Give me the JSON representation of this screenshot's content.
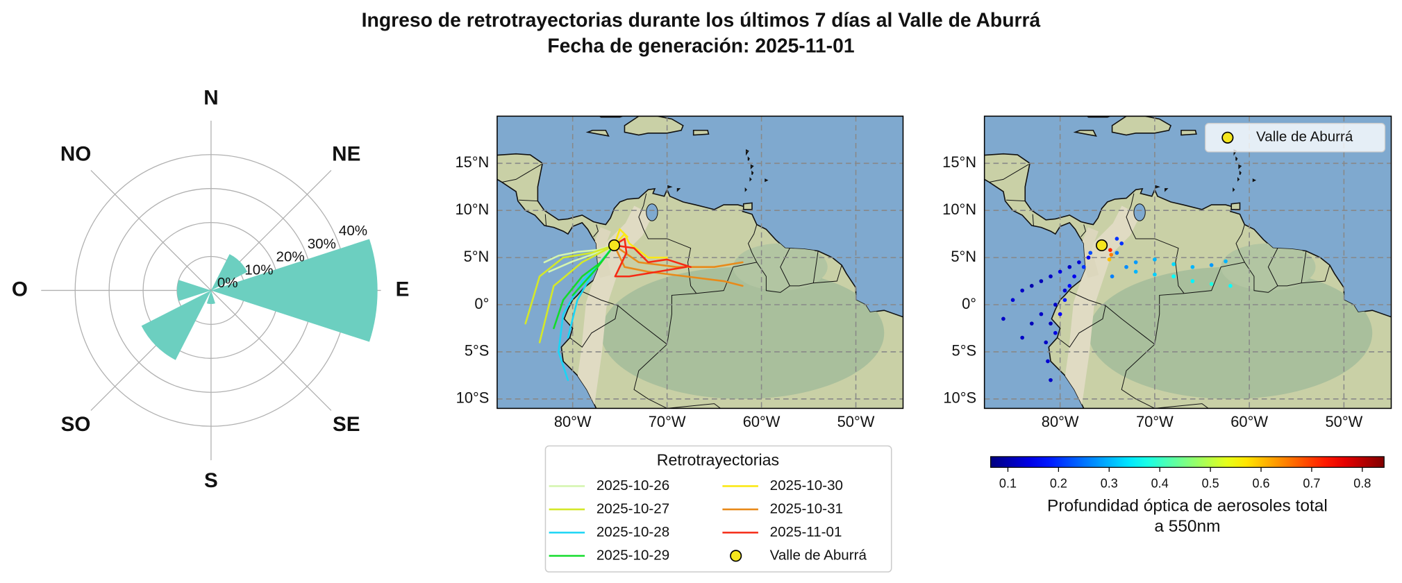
{
  "title": [
    "Ingreso de retrotrayectorias durante los últimos 7 días al Valle de Aburrá",
    "Fecha de generación: 2025-11-01"
  ],
  "chart_data": [
    {
      "type": "polar_bar",
      "categories": [
        "N",
        "NE",
        "E",
        "SE",
        "S",
        "SO",
        "O",
        "NO"
      ],
      "values": [
        0,
        12,
        49,
        0,
        4,
        23,
        10,
        0
      ],
      "color": "#6ccfc0",
      "rlim": [
        0,
        50
      ],
      "rticks": [
        {
          "value": 0,
          "label": "0%"
        },
        {
          "value": 10,
          "label": "10%"
        },
        {
          "value": 20,
          "label": "20%"
        },
        {
          "value": 30,
          "label": "30%"
        },
        {
          "value": 40,
          "label": "40%"
        }
      ],
      "grid": true
    },
    {
      "type": "line",
      "xlim": [
        -88,
        -45
      ],
      "ylim": [
        -11,
        20
      ],
      "xticks": [
        {
          "value": -80,
          "label": "80°W"
        },
        {
          "value": -70,
          "label": "70°W"
        },
        {
          "value": -60,
          "label": "60°W"
        },
        {
          "value": -50,
          "label": "50°W"
        }
      ],
      "yticks": [
        {
          "value": -10,
          "label": "10°S"
        },
        {
          "value": -5,
          "label": "5°S"
        },
        {
          "value": 0,
          "label": "0°"
        },
        {
          "value": 5,
          "label": "5°N"
        },
        {
          "value": 10,
          "label": "10°N"
        },
        {
          "value": 15,
          "label": "15°N"
        }
      ],
      "grid": true,
      "legend": "below",
      "legend_title": "Retrotrayectorias",
      "series": [
        {
          "name": "2025-10-26",
          "color": "#d5f5b0",
          "x": [
            -75.6,
            -77.5,
            -79.5,
            -81.5,
            -83,
            null,
            -75.6,
            -78,
            -80,
            -82.5
          ],
          "values": [
            6.3,
            5.8,
            5.6,
            5.2,
            4.5,
            null,
            6.3,
            5.3,
            4.6,
            3.5
          ]
        },
        {
          "name": "2025-10-27",
          "color": "#d4e82a",
          "x": [
            -75.6,
            -78,
            -81,
            -83.5,
            -85,
            null,
            -75.6,
            -79,
            -82,
            -83.5
          ],
          "values": [
            6.3,
            5.5,
            5,
            3,
            -2,
            null,
            6.3,
            4.5,
            2,
            -4
          ]
        },
        {
          "name": "2025-10-28",
          "color": "#1ad5f5",
          "x": [
            -75.6,
            -77,
            -79,
            -81,
            -81.5,
            -80.5,
            null,
            -75.6,
            -77.5,
            -79.5,
            -80.5
          ],
          "values": [
            6.3,
            4.5,
            2.5,
            -1,
            -5,
            -8,
            null,
            6.3,
            4,
            0.5,
            -3.5
          ]
        },
        {
          "name": "2025-10-29",
          "color": "#12dc2a",
          "x": [
            -75.6,
            -77,
            -79,
            -81,
            -82,
            null,
            -75.6,
            -77.5,
            -80
          ],
          "values": [
            6.3,
            4.5,
            3,
            0.5,
            -2.5,
            null,
            6.3,
            3.8,
            1
          ]
        },
        {
          "name": "2025-10-30",
          "color": "#fbe815",
          "x": [
            -75.6,
            -74.5,
            -74,
            -72,
            -70,
            null,
            -75.6,
            -75,
            -74.2
          ],
          "values": [
            6.3,
            7.5,
            6.5,
            5,
            5,
            null,
            6.3,
            8,
            7.2
          ]
        },
        {
          "name": "2025-10-31",
          "color": "#e88a1a",
          "x": [
            -75.6,
            -74.5,
            -72,
            -68,
            -64,
            -62,
            null,
            -75.6,
            -73,
            -69,
            -65,
            -62
          ],
          "values": [
            6.3,
            4,
            3.5,
            3,
            2.5,
            2,
            null,
            6.3,
            4.5,
            4,
            4,
            4.5
          ]
        },
        {
          "name": "2025-11-01",
          "color": "#f52a14",
          "x": [
            -75.6,
            -74.5,
            -74.3,
            -75.5,
            -74,
            -71,
            -68,
            null,
            -75.6,
            -73.5,
            -72,
            -70,
            -67.5
          ],
          "values": [
            6.3,
            7,
            5.5,
            3,
            3,
            3.5,
            4,
            null,
            6.3,
            6,
            4.5,
            4.8,
            4
          ]
        }
      ],
      "marker": {
        "name": "Valle de Aburrá",
        "x": -75.6,
        "y": 6.3,
        "color": "#f5e61e"
      }
    },
    {
      "type": "scatter",
      "xlim": [
        -88,
        -45
      ],
      "ylim": [
        -11,
        20
      ],
      "xticks": [
        {
          "value": -80,
          "label": "80°W"
        },
        {
          "value": -70,
          "label": "70°W"
        },
        {
          "value": -60,
          "label": "60°W"
        },
        {
          "value": -50,
          "label": "50°W"
        }
      ],
      "yticks": [
        {
          "value": -10,
          "label": "10°S"
        },
        {
          "value": -5,
          "label": "5°S"
        },
        {
          "value": 0,
          "label": "0°"
        },
        {
          "value": 5,
          "label": "5°N"
        },
        {
          "value": 10,
          "label": "10°N"
        },
        {
          "value": 15,
          "label": "15°N"
        }
      ],
      "grid": true,
      "legend": "upper right",
      "x": [
        -77,
        -78,
        -79,
        -80,
        -81,
        -82,
        -83,
        -84,
        -85,
        -86,
        -78.5,
        -79.5,
        -80.5,
        -81,
        -81.5,
        -81.3,
        -81,
        -79,
        -80,
        -80.5,
        -79.5,
        -82,
        -83,
        -84,
        -77.5,
        -76.8,
        -74,
        -73,
        -72,
        -70,
        -68,
        -66,
        -64,
        -62,
        -72,
        -70,
        -68,
        -66,
        -64,
        -62.5,
        -74.5,
        -74,
        -73.5,
        -74.7,
        -74.6,
        -74.8
      ],
      "values": [
        5,
        4.5,
        4,
        3.5,
        3,
        2.5,
        2,
        1.5,
        0.5,
        -1.5,
        3,
        1.5,
        0,
        -2,
        -4,
        -6,
        -8,
        2,
        -1,
        -3,
        0.5,
        -1,
        -2,
        -3.5,
        4,
        5.5,
        5.5,
        4,
        3.5,
        3.2,
        3,
        2.5,
        2.2,
        2,
        4.5,
        4.8,
        4.3,
        4,
        4.2,
        4.6,
        3,
        7,
        6.5,
        5.8,
        5.3,
        4.8
      ],
      "aod": [
        0.15,
        0.13,
        0.12,
        0.14,
        0.12,
        0.11,
        0.1,
        0.12,
        0.13,
        0.12,
        0.15,
        0.13,
        0.12,
        0.11,
        0.12,
        0.13,
        0.12,
        0.17,
        0.16,
        0.14,
        0.18,
        0.12,
        0.11,
        0.12,
        0.2,
        0.22,
        0.25,
        0.27,
        0.3,
        0.32,
        0.36,
        0.35,
        0.38,
        0.36,
        0.28,
        0.3,
        0.33,
        0.3,
        0.28,
        0.3,
        0.26,
        0.2,
        0.2,
        0.72,
        0.65,
        0.6
      ],
      "colormap": "jet",
      "clim": [
        0.066,
        0.843
      ],
      "cticks": [
        0.1,
        0.2,
        0.3,
        0.4,
        0.5,
        0.6,
        0.7,
        0.8
      ],
      "colorbar_label": [
        "Profundidad óptica de aerosoles total",
        "a 550nm"
      ],
      "marker": {
        "name": "Valle de Aburrá",
        "x": -75.6,
        "y": 6.3,
        "color": "#f5e61e"
      }
    }
  ]
}
